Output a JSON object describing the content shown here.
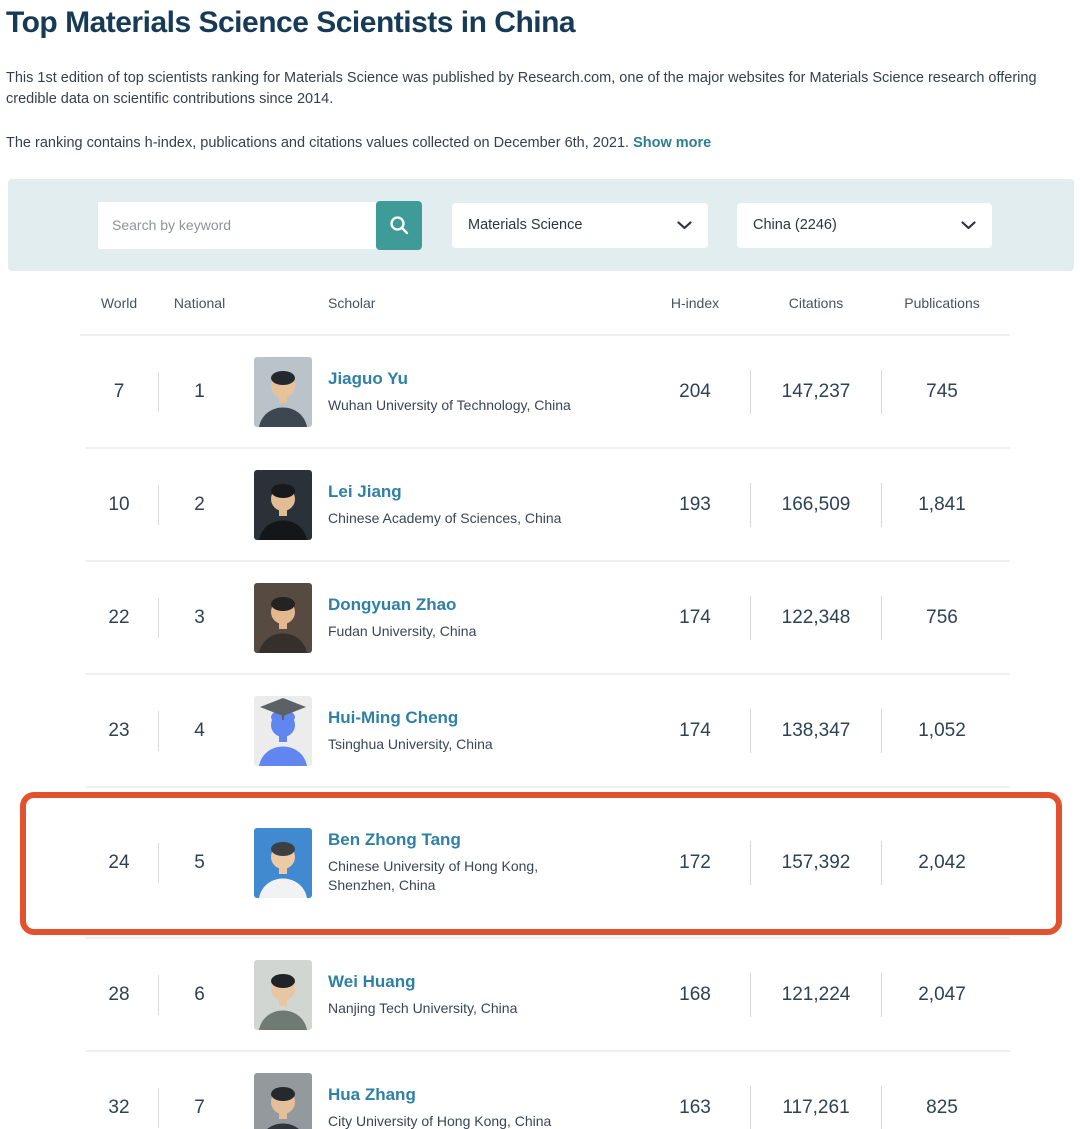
{
  "header": {
    "title": "Top Materials Science Scientists in China"
  },
  "intro": {
    "paragraph1": "This 1st edition of top scientists ranking for Materials Science was published by Research.com, one of the major websites for Materials Science research offering credible data on scientific contributions since 2014.",
    "paragraph2": "The ranking contains h-index, publications and citations values collected on December 6th, 2021.",
    "show_more": "Show more"
  },
  "filters": {
    "search_placeholder": "Search by keyword",
    "search_icon": "magnifier",
    "dropdown_icon": "chevron-down",
    "discipline": "Materials Science",
    "country": "China (2246)"
  },
  "colors": {
    "title": "#173a56",
    "accent_teal": "#3f9b98",
    "link_teal": "#2d7e91",
    "scholar_link": "#2e80a6",
    "filter_band_bg": "#e2edf0",
    "annotation_orange": "#e2522e"
  },
  "table": {
    "columns": [
      "World",
      "National",
      "Scholar",
      "H-index",
      "Citations",
      "Publications"
    ],
    "rows": [
      {
        "world": "7",
        "national": "1",
        "name": "Jiaguo Yu",
        "affiliation": "Wuhan University of Technology, China",
        "hindex": "204",
        "citations": "147,237",
        "publications": "745",
        "avatar": {
          "bg": "#b9c3c9",
          "hair": "#23282c",
          "skin": "#e6c29b",
          "torso": "#3d4752"
        }
      },
      {
        "world": "10",
        "national": "2",
        "name": "Lei Jiang",
        "affiliation": "Chinese Academy of Sciences, China",
        "hindex": "193",
        "citations": "166,509",
        "publications": "1,841",
        "avatar": {
          "bg": "#2b3138",
          "hair": "#17191c",
          "skin": "#e2bc94",
          "torso": "#14171a"
        }
      },
      {
        "world": "22",
        "national": "3",
        "name": "Dongyuan Zhao",
        "affiliation": "Fudan University, China",
        "hindex": "174",
        "citations": "122,348",
        "publications": "756",
        "avatar": {
          "bg": "#574b41",
          "hair": "#242322",
          "skin": "#e4b88e",
          "torso": "#35302c"
        }
      },
      {
        "world": "23",
        "national": "4",
        "name": "Hui-Ming Cheng",
        "affiliation": "Tsinghua University, China",
        "hindex": "174",
        "citations": "138,347",
        "publications": "1,052",
        "avatar": {
          "bg": "#ececec",
          "hair": "#6286ef",
          "skin": "#6286ef",
          "torso": "#6286ef",
          "cap": "#5c6166"
        }
      },
      {
        "world": "24",
        "national": "5",
        "name": "Ben Zhong Tang",
        "affiliation": "Chinese University of Hong Kong,\nShenzhen, China",
        "hindex": "172",
        "citations": "157,392",
        "publications": "2,042",
        "highlighted": true,
        "avatar": {
          "bg": "#418ad2",
          "hair": "#3c4043",
          "skin": "#eccaa4",
          "torso": "#f1f2f4"
        }
      },
      {
        "world": "28",
        "national": "6",
        "name": "Wei Huang",
        "affiliation": "Nanjing Tech University, China",
        "hindex": "168",
        "citations": "121,224",
        "publications": "2,047",
        "avatar": {
          "bg": "#d2d6d2",
          "hair": "#202428",
          "skin": "#e8c6a2",
          "torso": "#707a74"
        }
      },
      {
        "world": "32",
        "national": "7",
        "name": "Hua Zhang",
        "affiliation": "City University of Hong Kong, China",
        "hindex": "163",
        "citations": "117,261",
        "publications": "825",
        "avatar": {
          "bg": "#93999d",
          "hair": "#24292d",
          "skin": "#e5bf99",
          "torso": "#2e353d"
        }
      }
    ]
  },
  "annotation": {
    "type": "highlight-box",
    "target": "Ben Zhong Tang",
    "color": "#e2522e"
  }
}
